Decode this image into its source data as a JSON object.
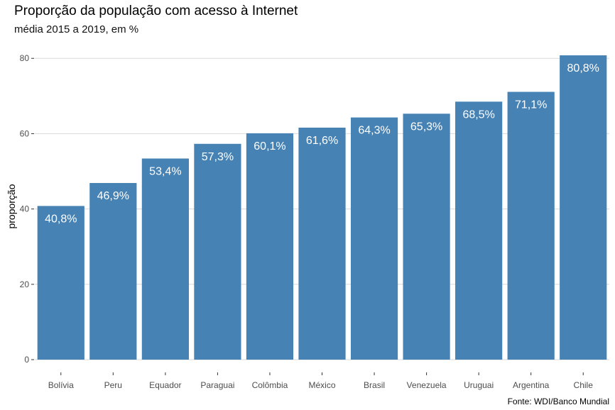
{
  "chart_data": {
    "type": "bar",
    "title": "Proporção da população com acesso à Internet",
    "subtitle": "média 2015 a 2019, em %",
    "ylabel": "proporção",
    "xlabel": "",
    "caption": "Fonte: WDI/Banco Mundial",
    "categories": [
      "Bolívia",
      "Peru",
      "Equador",
      "Paraguai",
      "Colômbia",
      "México",
      "Brasil",
      "Venezuela",
      "Uruguai",
      "Argentina",
      "Chile"
    ],
    "values": [
      40.8,
      46.9,
      53.4,
      57.3,
      60.1,
      61.6,
      64.3,
      65.3,
      68.5,
      71.1,
      80.8
    ],
    "data_labels": [
      "40,8%",
      "46,9%",
      "53,4%",
      "57,3%",
      "60,1%",
      "61,6%",
      "64,3%",
      "65,3%",
      "68,5%",
      "71,1%",
      "80,8%"
    ],
    "yticks": [
      0,
      20,
      40,
      60,
      80
    ],
    "ylim": [
      0,
      80.8
    ],
    "grid": "horizontal",
    "bar_color": "#4682B4"
  }
}
